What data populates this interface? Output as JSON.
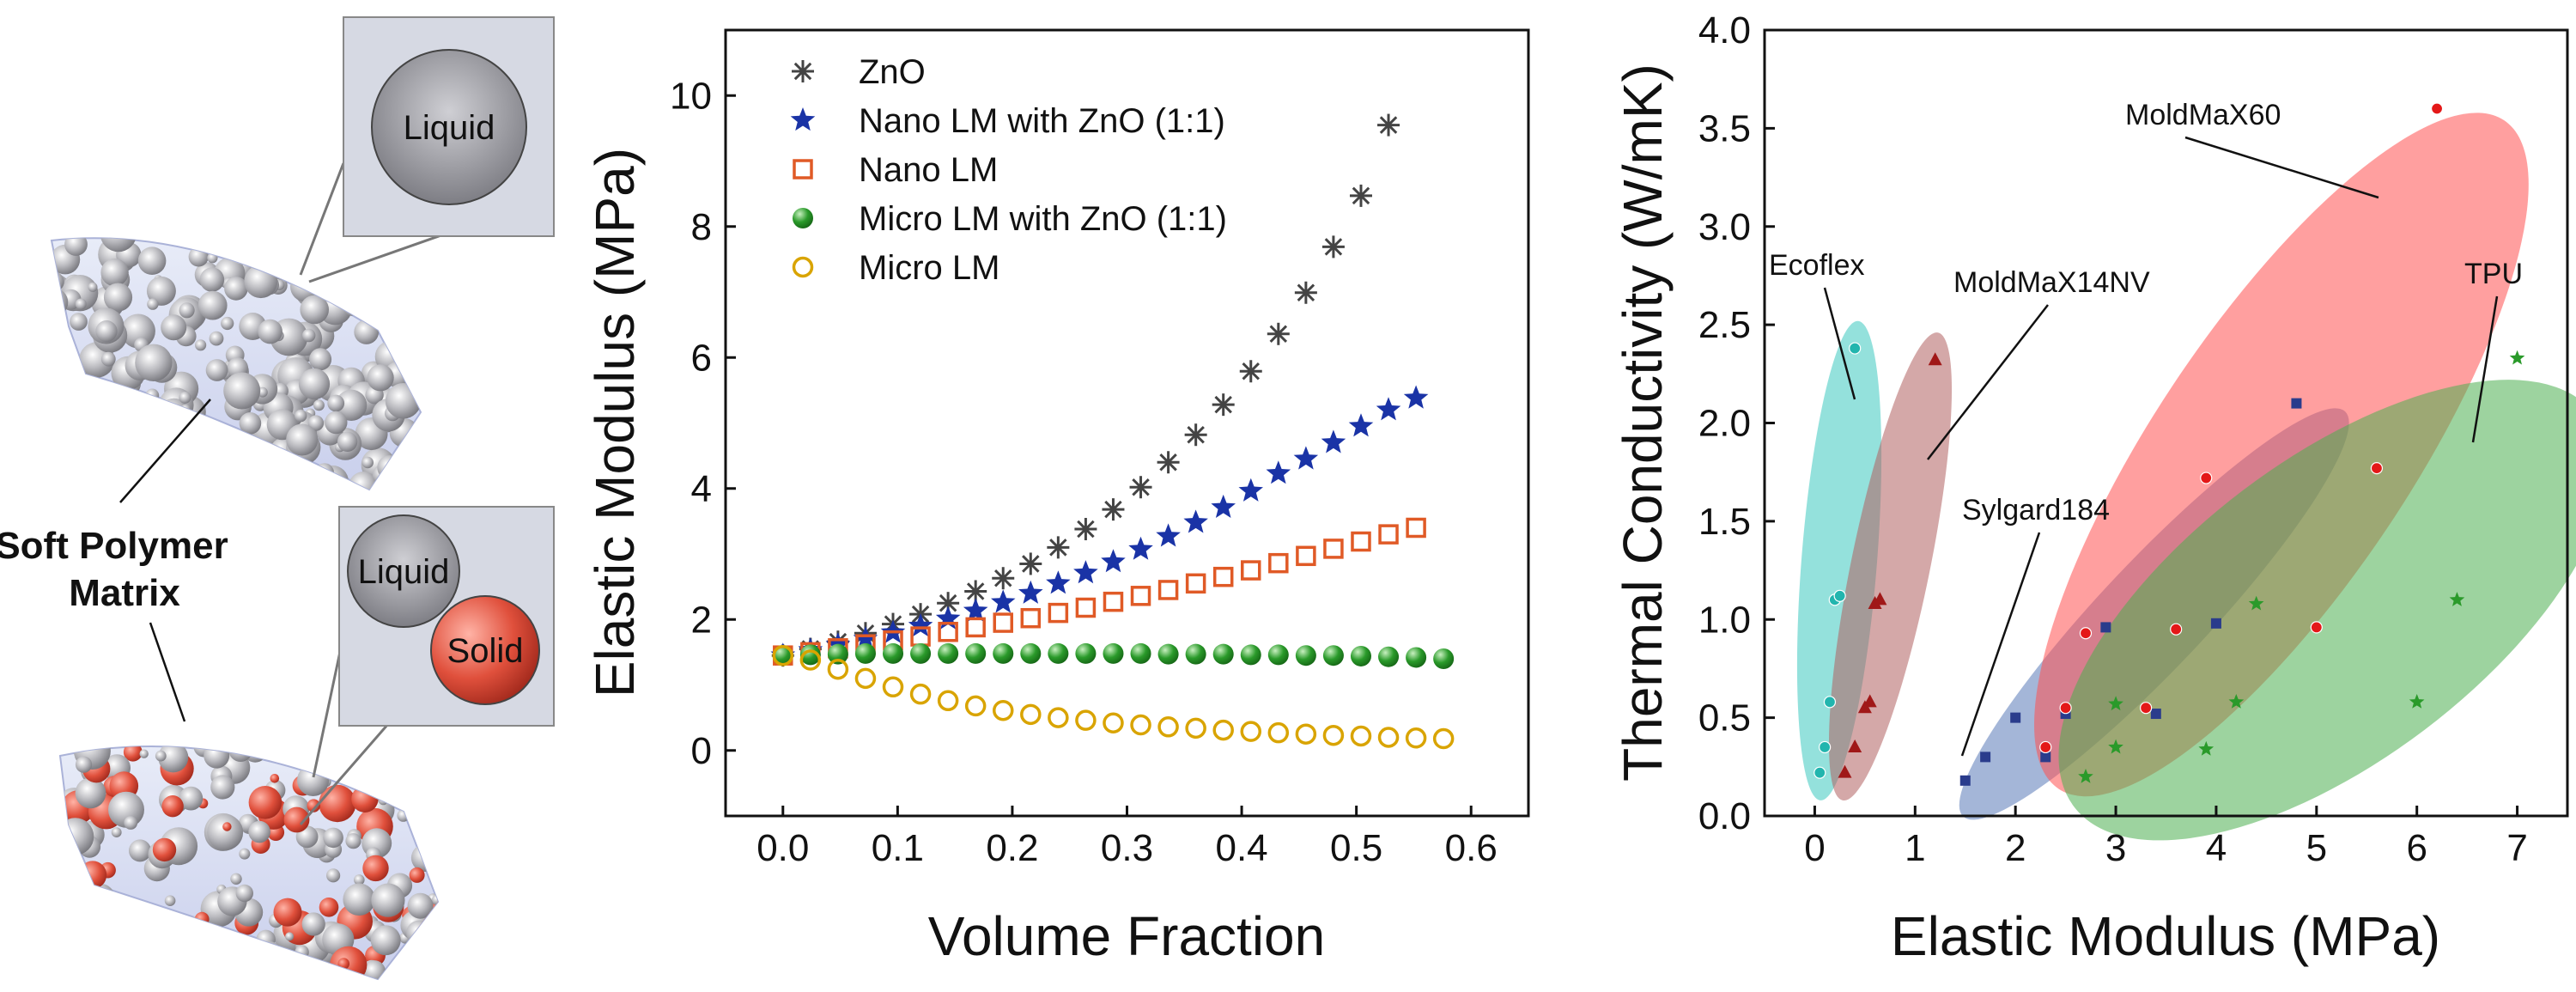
{
  "illustration": {
    "top_label": "Liquid",
    "bottom_labels": [
      "Liquid",
      "Solid"
    ],
    "matrix_label_lines": [
      "Soft Polymer",
      "Matrix"
    ]
  },
  "colors": {
    "zno": "#444444",
    "nano_zno": "#1a33a6",
    "nano_lm": "#e05a26",
    "micro_zno": "#2a9a2a",
    "micro_lm": "#d9a400",
    "ecoflex": "#3cc9c0",
    "moldmax14": "#b06060",
    "sylgard": "#5a7ab8",
    "moldmax60": "#ff5050",
    "tpu": "#4caf50"
  },
  "chart_data": [
    {
      "type": "scatter",
      "xlabel": "Volume Fraction",
      "ylabel": "Elastic Modulus (MPa)",
      "xlim": [
        -0.05,
        0.65
      ],
      "ylim": [
        -1,
        11
      ],
      "xticks": [
        "0.0",
        "0.1",
        "0.2",
        "0.3",
        "0.4",
        "0.5",
        "0.6"
      ],
      "yticks": [
        "0",
        "2",
        "4",
        "6",
        "8",
        "10"
      ],
      "legend_position": "top-left",
      "x": [
        0.0,
        0.024,
        0.048,
        0.072,
        0.096,
        0.12,
        0.144,
        0.168,
        0.192,
        0.216,
        0.24,
        0.264,
        0.288,
        0.312,
        0.336,
        0.36,
        0.384,
        0.408,
        0.432,
        0.456,
        0.48,
        0.504,
        0.528,
        0.552,
        0.576
      ],
      "series": [
        {
          "name": "ZnO",
          "marker": "asterisk",
          "color_key": "zno",
          "values": [
            1.45,
            1.55,
            1.66,
            1.79,
            1.93,
            2.08,
            2.25,
            2.43,
            2.63,
            2.85,
            3.1,
            3.38,
            3.68,
            4.02,
            4.4,
            4.82,
            5.28,
            5.79,
            6.36,
            6.99,
            7.69,
            8.47,
            9.55,
            null,
            null
          ]
        },
        {
          "name": "Nano LM with ZnO (1:1)",
          "marker": "star",
          "color_key": "nano_zno",
          "values": [
            1.45,
            1.53,
            1.61,
            1.7,
            1.8,
            1.9,
            2.01,
            2.13,
            2.26,
            2.4,
            2.55,
            2.71,
            2.88,
            3.07,
            3.27,
            3.48,
            3.71,
            3.96,
            4.23,
            4.45,
            4.7,
            4.95,
            5.2,
            5.38,
            null
          ]
        },
        {
          "name": "Nano LM",
          "marker": "square-open",
          "color_key": "nano_lm",
          "values": [
            1.45,
            1.5,
            1.56,
            1.62,
            1.68,
            1.74,
            1.81,
            1.88,
            1.95,
            2.02,
            2.1,
            2.18,
            2.27,
            2.36,
            2.45,
            2.55,
            2.65,
            2.75,
            2.86,
            2.97,
            3.08,
            3.19,
            3.3,
            3.4,
            null
          ]
        },
        {
          "name": "Micro LM with ZnO (1:1)",
          "marker": "ball",
          "color_key": "micro_zno",
          "values": [
            1.45,
            1.46,
            1.47,
            1.48,
            1.48,
            1.48,
            1.48,
            1.48,
            1.48,
            1.48,
            1.48,
            1.48,
            1.48,
            1.48,
            1.47,
            1.47,
            1.47,
            1.46,
            1.46,
            1.45,
            1.45,
            1.44,
            1.43,
            1.42,
            1.4
          ]
        },
        {
          "name": "Micro LM",
          "marker": "circle-open",
          "color_key": "micro_lm",
          "values": [
            1.45,
            1.38,
            1.24,
            1.1,
            0.97,
            0.86,
            0.76,
            0.68,
            0.61,
            0.55,
            0.5,
            0.46,
            0.42,
            0.39,
            0.36,
            0.34,
            0.31,
            0.29,
            0.27,
            0.25,
            0.23,
            0.22,
            0.2,
            0.19,
            0.18
          ]
        }
      ]
    },
    {
      "type": "scatter",
      "xlabel": "Elastic Modulus (MPa)",
      "ylabel": "Thermal Conductivity (W/mK)",
      "xlim": [
        -0.5,
        7.5
      ],
      "ylim": [
        0,
        4
      ],
      "xticks": [
        "0",
        "1",
        "2",
        "3",
        "4",
        "5",
        "6",
        "7"
      ],
      "yticks": [
        "0.0",
        "0.5",
        "1.0",
        "1.5",
        "2.0",
        "2.5",
        "3.0",
        "3.5",
        "4.0"
      ],
      "series": [
        {
          "name": "Ecoflex",
          "marker": "circle",
          "color_key": "ecoflex",
          "points": [
            [
              0.05,
              0.22
            ],
            [
              0.1,
              0.35
            ],
            [
              0.15,
              0.58
            ],
            [
              0.2,
              1.1
            ],
            [
              0.25,
              1.12
            ],
            [
              0.4,
              2.38
            ]
          ]
        },
        {
          "name": "MoldMaX14NV",
          "marker": "triangle",
          "color_key": "moldmax14",
          "points": [
            [
              0.3,
              0.22
            ],
            [
              0.4,
              0.35
            ],
            [
              0.5,
              0.55
            ],
            [
              0.55,
              0.58
            ],
            [
              0.6,
              1.08
            ],
            [
              0.65,
              1.1
            ],
            [
              1.2,
              2.32
            ]
          ]
        },
        {
          "name": "Sylgard184",
          "marker": "square",
          "color_key": "sylgard",
          "points": [
            [
              1.5,
              0.18
            ],
            [
              1.7,
              0.3
            ],
            [
              2.0,
              0.5
            ],
            [
              2.3,
              0.3
            ],
            [
              2.5,
              0.52
            ],
            [
              2.9,
              0.96
            ],
            [
              3.4,
              0.52
            ],
            [
              4.0,
              0.98
            ],
            [
              4.8,
              2.1
            ]
          ]
        },
        {
          "name": "MoldMaX60",
          "marker": "circle",
          "color_key": "moldmax60",
          "points": [
            [
              2.3,
              0.35
            ],
            [
              2.5,
              0.55
            ],
            [
              2.7,
              0.93
            ],
            [
              3.3,
              0.55
            ],
            [
              3.6,
              0.95
            ],
            [
              3.9,
              1.72
            ],
            [
              5.0,
              0.96
            ],
            [
              5.6,
              1.77
            ],
            [
              6.2,
              3.6
            ]
          ]
        },
        {
          "name": "TPU",
          "marker": "star",
          "color_key": "tpu",
          "points": [
            [
              2.7,
              0.2
            ],
            [
              3.0,
              0.35
            ],
            [
              3.0,
              0.57
            ],
            [
              3.9,
              0.34
            ],
            [
              4.2,
              0.58
            ],
            [
              4.4,
              1.08
            ],
            [
              6.0,
              0.58
            ],
            [
              6.4,
              1.1
            ],
            [
              7.0,
              2.33
            ]
          ]
        }
      ]
    }
  ]
}
